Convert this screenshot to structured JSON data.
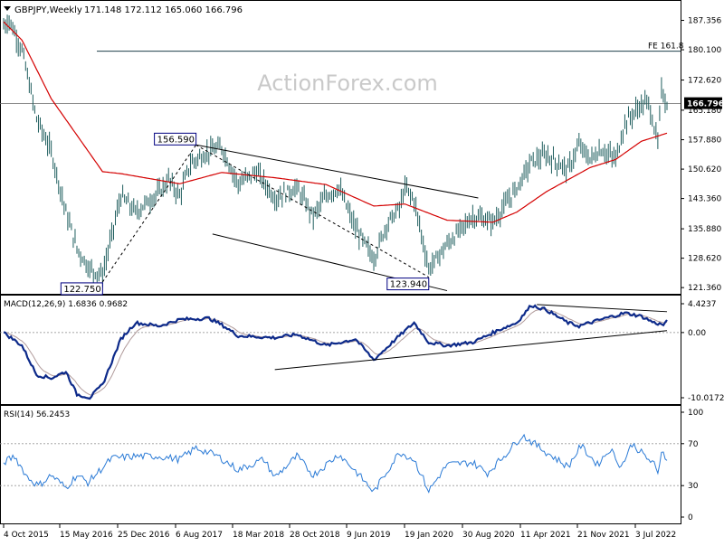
{
  "header": {
    "title": "GBPJPY,Weekly",
    "ohlc": "171.148 172.112 165.060 166.796"
  },
  "watermark": "ActionForex.com",
  "colors": {
    "price_bars": "#1f5e5e",
    "moving_average": "#d40000",
    "macd": "#0d2a8a",
    "macd_signal": "#b09a9a",
    "rsi": "#2a7ad6",
    "trendline": "#000000",
    "label_border": "#000080",
    "current_price_box": "#000000",
    "level_line": "#666666"
  },
  "chart_data": [
    {
      "type": "candlestick",
      "title": "GBPJPY,Weekly",
      "ylim": [
        120.5,
        190.6
      ],
      "y_ticks": [
        "187.356",
        "180.100",
        "172.620",
        "165.180",
        "157.880",
        "150.620",
        "143.360",
        "135.880",
        "128.620",
        "121.360"
      ],
      "x_ticks": [
        "4 Oct 2015",
        "15 May 2016",
        "25 Dec 2016",
        "6 Aug 2017",
        "18 Mar 2018",
        "28 Oct 2018",
        "9 Jun 2019",
        "19 Jan 2020",
        "30 Aug 2020",
        "11 Apr 2021",
        "21 Nov 2021",
        "3 Jul 2022"
      ],
      "approx_close_path": [
        {
          "date": "2015-10-04",
          "value": 186.0
        },
        {
          "date": "2015-10-25",
          "value": 187.5
        },
        {
          "date": "2015-12-13",
          "value": 180.0
        },
        {
          "date": "2016-02-07",
          "value": 163.0
        },
        {
          "date": "2016-04-03",
          "value": 155.0
        },
        {
          "date": "2016-05-29",
          "value": 140.0
        },
        {
          "date": "2016-07-10",
          "value": 131.0
        },
        {
          "date": "2016-08-28",
          "value": 126.0
        },
        {
          "date": "2016-10-16",
          "value": 124.5
        },
        {
          "date": "2016-12-25",
          "value": 144.0
        },
        {
          "date": "2017-02-19",
          "value": 140.0
        },
        {
          "date": "2017-05-21",
          "value": 145.0
        },
        {
          "date": "2017-06-25",
          "value": 148.0
        },
        {
          "date": "2017-08-06",
          "value": 144.0
        },
        {
          "date": "2017-09-17",
          "value": 152.0
        },
        {
          "date": "2017-11-26",
          "value": 155.0
        },
        {
          "date": "2018-01-14",
          "value": 156.0
        },
        {
          "date": "2018-03-18",
          "value": 147.0
        },
        {
          "date": "2018-05-27",
          "value": 150.0
        },
        {
          "date": "2018-08-05",
          "value": 143.5
        },
        {
          "date": "2018-10-28",
          "value": 146.0
        },
        {
          "date": "2018-12-30",
          "value": 139.0
        },
        {
          "date": "2019-02-17",
          "value": 144.0
        },
        {
          "date": "2019-04-07",
          "value": 146.0
        },
        {
          "date": "2019-06-09",
          "value": 136.0
        },
        {
          "date": "2019-08-18",
          "value": 128.5
        },
        {
          "date": "2019-10-06",
          "value": 137.0
        },
        {
          "date": "2019-11-24",
          "value": 141.0
        },
        {
          "date": "2019-12-15",
          "value": 146.0
        },
        {
          "date": "2020-01-19",
          "value": 143.0
        },
        {
          "date": "2020-03-15",
          "value": 126.0
        },
        {
          "date": "2020-05-24",
          "value": 132.0
        },
        {
          "date": "2020-07-19",
          "value": 136.0
        },
        {
          "date": "2020-08-30",
          "value": 139.0
        },
        {
          "date": "2020-11-15",
          "value": 137.5
        },
        {
          "date": "2020-12-13",
          "value": 140.0
        },
        {
          "date": "2021-02-14",
          "value": 146.0
        },
        {
          "date": "2021-04-11",
          "value": 152.5
        },
        {
          "date": "2021-06-06",
          "value": 154.0
        },
        {
          "date": "2021-08-29",
          "value": 150.5
        },
        {
          "date": "2021-10-10",
          "value": 156.5
        },
        {
          "date": "2021-11-21",
          "value": 153.0
        },
        {
          "date": "2022-01-02",
          "value": 155.5
        },
        {
          "date": "2022-02-27",
          "value": 153.0
        },
        {
          "date": "2022-04-03",
          "value": 162.0
        },
        {
          "date": "2022-05-08",
          "value": 164.5
        },
        {
          "date": "2022-06-05",
          "value": 166.5
        },
        {
          "date": "2022-07-03",
          "value": 167.0
        },
        {
          "date": "2022-08-07",
          "value": 157.0
        },
        {
          "date": "2022-08-21",
          "value": 170.0
        },
        {
          "date": "2022-09-11",
          "value": 166.8
        }
      ],
      "moving_average_path": [
        {
          "date": "2015-10-04",
          "value": 187.0
        },
        {
          "date": "2015-12-13",
          "value": 182.5
        },
        {
          "date": "2016-04-03",
          "value": 168.0
        },
        {
          "date": "2016-10-16",
          "value": 150.0
        },
        {
          "date": "2016-12-25",
          "value": 149.5
        },
        {
          "date": "2017-08-06",
          "value": 147.0
        },
        {
          "date": "2018-01-14",
          "value": 149.8
        },
        {
          "date": "2018-08-05",
          "value": 148.5
        },
        {
          "date": "2019-02-17",
          "value": 146.8
        },
        {
          "date": "2019-08-18",
          "value": 141.5
        },
        {
          "date": "2019-12-15",
          "value": 142.0
        },
        {
          "date": "2020-05-24",
          "value": 138.0
        },
        {
          "date": "2020-11-15",
          "value": 137.5
        },
        {
          "date": "2021-02-14",
          "value": 140.0
        },
        {
          "date": "2021-06-06",
          "value": 145.0
        },
        {
          "date": "2021-11-21",
          "value": 151.0
        },
        {
          "date": "2022-02-27",
          "value": 153.0
        },
        {
          "date": "2022-06-05",
          "value": 157.5
        },
        {
          "date": "2022-09-11",
          "value": 159.5
        }
      ],
      "annotations": {
        "fe_label": "FE 161.8",
        "fe_value": 179.75,
        "current_price": "166.796",
        "current_value": 166.796,
        "label_high": "156.590",
        "label_high_value": 156.59,
        "label_high_date": "2017-10-08",
        "label_low1": "122.750",
        "label_low1_value": 122.75,
        "label_low1_date": "2016-10-16",
        "label_low2": "123.940",
        "label_low2_value": 123.94,
        "label_low2_date": "2020-03-15"
      },
      "trendlines": [
        {
          "from": {
            "date": "2017-10-08",
            "value": 156.6
          },
          "to": {
            "date": "2020-09-20",
            "value": 143.5
          },
          "style": "solid"
        },
        {
          "from": {
            "date": "2017-12-10",
            "value": 134.6
          },
          "to": {
            "date": "2020-05-24",
            "value": 120.6
          },
          "style": "solid"
        },
        {
          "from": {
            "date": "2016-10-16",
            "value": 122.75
          },
          "to": {
            "date": "2017-10-08",
            "value": 156.59
          },
          "style": "dashed"
        },
        {
          "from": {
            "date": "2017-10-08",
            "value": 156.59
          },
          "to": {
            "date": "2020-03-15",
            "value": 123.94
          },
          "style": "dashed"
        }
      ]
    },
    {
      "type": "line",
      "title": "MACD(12,26,9) 1.6836 0.9682",
      "ylim": [
        -10.0172,
        4.4237
      ],
      "y_ticks": [
        "4.4237",
        "0.00",
        "-10.0172"
      ],
      "macd_path": [
        {
          "date": "2015-10-04",
          "value": 0.0
        },
        {
          "date": "2015-12-13",
          "value": -2.0
        },
        {
          "date": "2016-02-07",
          "value": -6.5
        },
        {
          "date": "2016-04-03",
          "value": -7.0
        },
        {
          "date": "2016-05-29",
          "value": -6.0
        },
        {
          "date": "2016-07-10",
          "value": -9.5
        },
        {
          "date": "2016-08-28",
          "value": -10.0
        },
        {
          "date": "2016-10-16",
          "value": -8.0
        },
        {
          "date": "2016-12-25",
          "value": -1.0
        },
        {
          "date": "2017-02-19",
          "value": 1.5
        },
        {
          "date": "2017-05-21",
          "value": 1.0
        },
        {
          "date": "2017-08-06",
          "value": 2.0
        },
        {
          "date": "2017-11-26",
          "value": 2.2
        },
        {
          "date": "2018-01-14",
          "value": 1.2
        },
        {
          "date": "2018-03-18",
          "value": -0.5
        },
        {
          "date": "2018-08-05",
          "value": -0.8
        },
        {
          "date": "2018-10-28",
          "value": -0.3
        },
        {
          "date": "2019-02-17",
          "value": -2.0
        },
        {
          "date": "2019-06-09",
          "value": -1.0
        },
        {
          "date": "2019-08-18",
          "value": -4.2
        },
        {
          "date": "2019-11-24",
          "value": -0.5
        },
        {
          "date": "2020-01-19",
          "value": 1.5
        },
        {
          "date": "2020-03-15",
          "value": -1.5
        },
        {
          "date": "2020-05-24",
          "value": -2.0
        },
        {
          "date": "2020-08-30",
          "value": -1.5
        },
        {
          "date": "2020-12-13",
          "value": 0.5
        },
        {
          "date": "2021-02-14",
          "value": 1.5
        },
        {
          "date": "2021-04-11",
          "value": 4.2
        },
        {
          "date": "2021-06-06",
          "value": 3.5
        },
        {
          "date": "2021-08-29",
          "value": 1.5
        },
        {
          "date": "2021-10-10",
          "value": 1.0
        },
        {
          "date": "2021-11-21",
          "value": 1.5
        },
        {
          "date": "2022-01-02",
          "value": 2.0
        },
        {
          "date": "2022-04-03",
          "value": 3.0
        },
        {
          "date": "2022-06-05",
          "value": 2.5
        },
        {
          "date": "2022-07-24",
          "value": 1.5
        },
        {
          "date": "2022-08-28",
          "value": 1.2
        },
        {
          "date": "2022-09-11",
          "value": 1.6836
        }
      ],
      "trendlines": [
        {
          "from": {
            "date": "2018-08-05",
            "value": -5.7
          },
          "to": {
            "date": "2022-09-11",
            "value": 0.3
          },
          "style": "solid"
        },
        {
          "from": {
            "date": "2021-05-02",
            "value": 4.3
          },
          "to": {
            "date": "2022-09-11",
            "value": 3.2
          },
          "style": "solid"
        }
      ]
    },
    {
      "type": "line",
      "title": "RSI(14) 56.2453",
      "ylim": [
        0,
        100
      ],
      "y_ticks": [
        "100",
        "70",
        "30",
        "0"
      ],
      "levels": [
        70,
        30
      ],
      "rsi_path": [
        {
          "date": "2015-10-04",
          "value": 52
        },
        {
          "date": "2015-11-15",
          "value": 58
        },
        {
          "date": "2016-01-03",
          "value": 38
        },
        {
          "date": "2016-02-14",
          "value": 30
        },
        {
          "date": "2016-04-03",
          "value": 40
        },
        {
          "date": "2016-05-29",
          "value": 28
        },
        {
          "date": "2016-07-10",
          "value": 40
        },
        {
          "date": "2016-08-21",
          "value": 33
        },
        {
          "date": "2016-11-20",
          "value": 56
        },
        {
          "date": "2017-02-19",
          "value": 58
        },
        {
          "date": "2017-05-21",
          "value": 58
        },
        {
          "date": "2017-08-06",
          "value": 55
        },
        {
          "date": "2017-10-08",
          "value": 66
        },
        {
          "date": "2017-12-31",
          "value": 58
        },
        {
          "date": "2018-03-18",
          "value": 45
        },
        {
          "date": "2018-06-24",
          "value": 55
        },
        {
          "date": "2018-08-05",
          "value": 38
        },
        {
          "date": "2018-10-28",
          "value": 58
        },
        {
          "date": "2018-12-30",
          "value": 40
        },
        {
          "date": "2019-04-07",
          "value": 60
        },
        {
          "date": "2019-06-09",
          "value": 44
        },
        {
          "date": "2019-08-18",
          "value": 24
        },
        {
          "date": "2019-11-24",
          "value": 62
        },
        {
          "date": "2020-01-19",
          "value": 55
        },
        {
          "date": "2020-03-15",
          "value": 25
        },
        {
          "date": "2020-05-24",
          "value": 50
        },
        {
          "date": "2020-08-30",
          "value": 52
        },
        {
          "date": "2020-10-25",
          "value": 42
        },
        {
          "date": "2021-01-03",
          "value": 60
        },
        {
          "date": "2021-03-07",
          "value": 78
        },
        {
          "date": "2021-04-11",
          "value": 72
        },
        {
          "date": "2021-06-06",
          "value": 62
        },
        {
          "date": "2021-08-29",
          "value": 48
        },
        {
          "date": "2021-10-17",
          "value": 68
        },
        {
          "date": "2021-12-19",
          "value": 50
        },
        {
          "date": "2022-02-06",
          "value": 65
        },
        {
          "date": "2022-03-20",
          "value": 48
        },
        {
          "date": "2022-05-01",
          "value": 70
        },
        {
          "date": "2022-06-19",
          "value": 58
        },
        {
          "date": "2022-07-24",
          "value": 50
        },
        {
          "date": "2022-08-07",
          "value": 40
        },
        {
          "date": "2022-08-21",
          "value": 64
        },
        {
          "date": "2022-09-11",
          "value": 56.2
        }
      ]
    }
  ]
}
